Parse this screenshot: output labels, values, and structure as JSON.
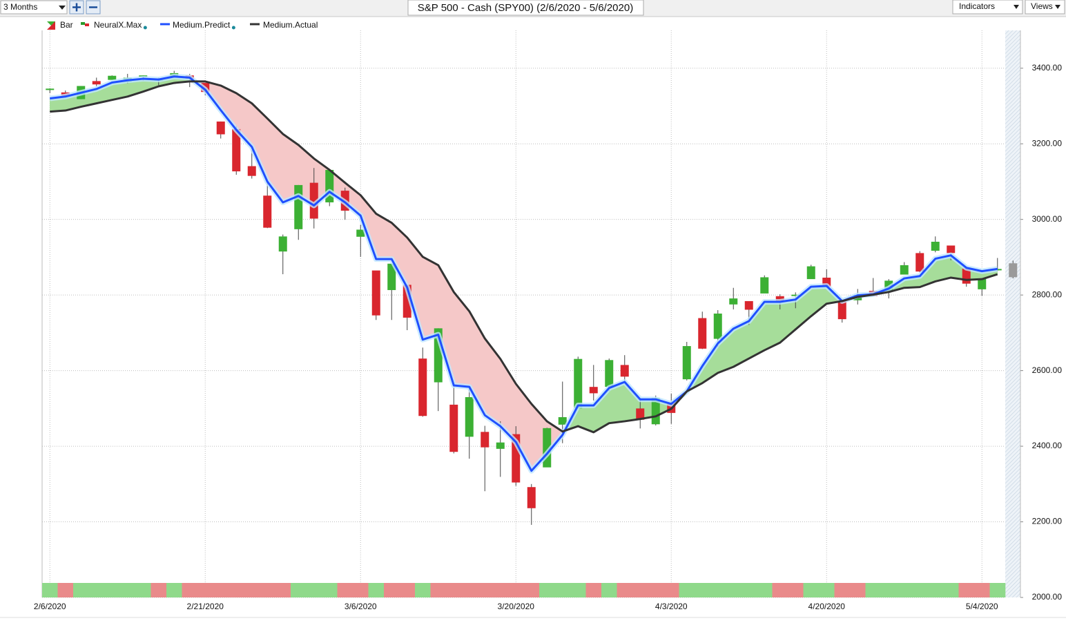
{
  "toolbar": {
    "range": "3 Months",
    "indicators": "Indicators",
    "views": "Views"
  },
  "chart_data": {
    "type": "candlestick",
    "title": "S&P 500 - Cash (SPY00) (2/6/2020 - 5/6/2020)",
    "categories": [
      "2/6/2020",
      null,
      null,
      null,
      null,
      null,
      null,
      null,
      null,
      null,
      "2/21/2020",
      null,
      null,
      null,
      null,
      null,
      null,
      null,
      null,
      null,
      "3/6/2020",
      null,
      null,
      null,
      null,
      null,
      null,
      null,
      null,
      null,
      "3/20/2020",
      null,
      null,
      null,
      null,
      null,
      null,
      null,
      null,
      null,
      "4/3/2020",
      null,
      null,
      null,
      null,
      null,
      null,
      null,
      null,
      null,
      "4/20/2020",
      null,
      null,
      null,
      null,
      null,
      null,
      null,
      null,
      null,
      "5/4/2020",
      null,
      null
    ],
    "ylim": [
      2000,
      3500
    ],
    "yticks": [
      {
        "value": 2000,
        "label": "2000.00"
      },
      {
        "value": 2200,
        "label": "2200.00"
      },
      {
        "value": 2400,
        "label": "2400.00"
      },
      {
        "value": 2600,
        "label": "2600.00"
      },
      {
        "value": 2800,
        "label": "2800.00"
      },
      {
        "value": 3000,
        "label": "3000.00"
      },
      {
        "value": 3200,
        "label": "3200.00"
      },
      {
        "value": 3400,
        "label": "3400.00"
      }
    ],
    "grid": true,
    "fill_up_color": "#a6dd9a",
    "fill_down_color": "#f5c8c8",
    "series": [
      {
        "name": "Bar",
        "type": "candlestick",
        "up_color": "#3cb034",
        "down_color": "#d9262e",
        "last_color": "#9a9a9a",
        "open": [
          3344,
          3335,
          3319,
          3365,
          3370,
          3365,
          3378,
          3370,
          3380,
          3380,
          3360,
          3258,
          3238,
          3140,
          3062,
          2916,
          2975,
          3096,
          3046,
          3075,
          2955,
          2864,
          2814,
          2826,
          2631,
          2570,
          2509,
          2426,
          2437,
          2394,
          2431,
          2291,
          2345,
          2458,
          2501,
          2556,
          2558,
          2614,
          2499,
          2459,
          2515,
          2578,
          2738,
          2685,
          2776,
          2783,
          2805,
          2796,
          2799,
          2843,
          2845,
          2785,
          2787,
          2810,
          2812,
          2855,
          2910,
          2918,
          2930,
          2869,
          2816,
          2868,
          2883
        ],
        "high": [
          3347,
          3341,
          3353,
          3375,
          3381,
          3385,
          3381,
          3375,
          3393,
          3385,
          3361,
          3259,
          3247,
          3183,
          3098,
          2960,
          3091,
          3136,
          3131,
          3084,
          2986,
          2864,
          2882,
          2826,
          2661,
          2712,
          2563,
          2553,
          2454,
          2466,
          2453,
          2300,
          2449,
          2571,
          2637,
          2615,
          2632,
          2641,
          2522,
          2534,
          2539,
          2676,
          2756,
          2760,
          2819,
          2783,
          2852,
          2802,
          2807,
          2880,
          2868,
          2785,
          2816,
          2845,
          2842,
          2887,
          2916,
          2955,
          2930,
          2869,
          2844,
          2898,
          2891
        ],
        "low": [
          3334,
          3322,
          3318,
          3352,
          3369,
          3360,
          3367,
          3355,
          3378,
          3350,
          3328,
          3214,
          3118,
          3108,
          2977,
          2855,
          2946,
          2976,
          3035,
          2999,
          2901,
          2734,
          2734,
          2707,
          2478,
          2493,
          2381,
          2367,
          2281,
          2319,
          2295,
          2192,
          2345,
          2408,
          2500,
          2521,
          2545,
          2571,
          2447,
          2455,
          2459,
          2574,
          2657,
          2663,
          2762,
          2721,
          2805,
          2762,
          2765,
          2843,
          2820,
          2727,
          2775,
          2798,
          2791,
          2855,
          2860,
          2913,
          2892,
          2822,
          2798,
          2863,
          2844
        ],
        "close": [
          3345,
          3328,
          3352,
          3358,
          3379,
          3374,
          3380,
          3370,
          3386,
          3373,
          3338,
          3226,
          3128,
          3116,
          2979,
          2954,
          3090,
          3003,
          3130,
          3024,
          2972,
          2747,
          2882,
          2741,
          2481,
          2711,
          2386,
          2529,
          2398,
          2409,
          2305,
          2237,
          2447,
          2476,
          2630,
          2541,
          2627,
          2585,
          2471,
          2527,
          2489,
          2664,
          2659,
          2750,
          2790,
          2762,
          2846,
          2783,
          2800,
          2875,
          2823,
          2737,
          2799,
          2798,
          2837,
          2878,
          2863,
          2940,
          2912,
          2831,
          2843,
          2868,
          2848
        ]
      },
      {
        "name": "NeuralX.Max",
        "type": "signal",
        "up_color": "#8fd98a",
        "down_color": "#e98a8a",
        "values": [
          1,
          -1,
          1,
          1,
          1,
          1,
          1,
          -1,
          1,
          -1,
          -1,
          -1,
          -1,
          -1,
          -1,
          -1,
          1,
          1,
          1,
          -1,
          -1,
          1,
          -1,
          -1,
          1,
          -1,
          -1,
          -1,
          -1,
          -1,
          -1,
          -1,
          1,
          1,
          1,
          -1,
          1,
          -1,
          -1,
          -1,
          -1,
          1,
          1,
          1,
          1,
          1,
          1,
          -1,
          -1,
          1,
          1,
          -1,
          -1,
          1,
          1,
          1,
          1,
          1,
          1,
          -1,
          -1,
          1,
          null
        ]
      },
      {
        "name": "Medium.Predict",
        "type": "line",
        "color": "#1f4fff",
        "values": [
          3320,
          3325,
          3335,
          3345,
          3362,
          3368,
          3372,
          3370,
          3378,
          3375,
          3343,
          3289,
          3237,
          3192,
          3100,
          3045,
          3062,
          3037,
          3073,
          3045,
          3010,
          2895,
          2895,
          2820,
          2682,
          2695,
          2561,
          2557,
          2482,
          2453,
          2411,
          2335,
          2380,
          2430,
          2508,
          2508,
          2554,
          2570,
          2524,
          2524,
          2512,
          2545,
          2612,
          2672,
          2711,
          2731,
          2782,
          2782,
          2788,
          2822,
          2824,
          2784,
          2799,
          2802,
          2817,
          2844,
          2850,
          2896,
          2905,
          2872,
          2863,
          2869,
          null
        ]
      },
      {
        "name": "Medium.Actual",
        "type": "line",
        "color": "#333333",
        "values": [
          3285,
          3288,
          3298,
          3307,
          3316,
          3325,
          3338,
          3352,
          3361,
          3365,
          3365,
          3354,
          3334,
          3307,
          3267,
          3226,
          3197,
          3161,
          3131,
          3097,
          3064,
          3015,
          2991,
          2952,
          2901,
          2879,
          2808,
          2757,
          2685,
          2631,
          2565,
          2512,
          2466,
          2439,
          2453,
          2437,
          2461,
          2466,
          2472,
          2479,
          2499,
          2545,
          2567,
          2594,
          2610,
          2632,
          2654,
          2674,
          2709,
          2744,
          2777,
          2784,
          2795,
          2801,
          2808,
          2819,
          2821,
          2836,
          2846,
          2840,
          2842,
          2855,
          null
        ]
      }
    ]
  }
}
